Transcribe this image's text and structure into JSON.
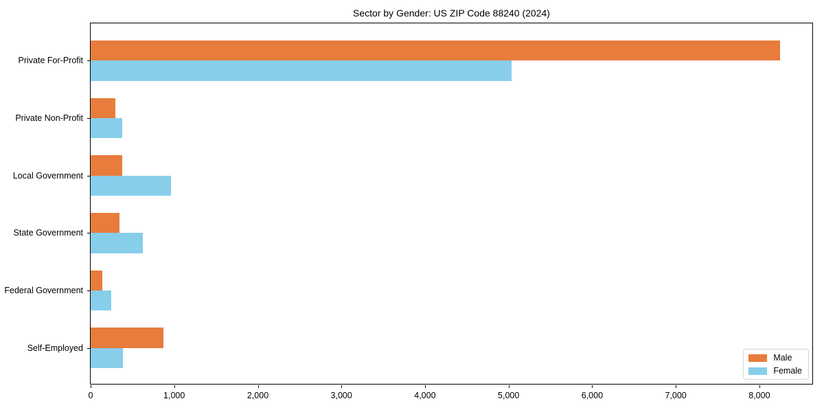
{
  "title": "Sector by Gender: US ZIP Code 88240 (2024)",
  "chart_data": {
    "type": "bar",
    "orientation": "horizontal",
    "title": "Sector by Gender: US ZIP Code 88240 (2024)",
    "categories": [
      "Private For-Profit",
      "Private Non-Profit",
      "Local Government",
      "State Government",
      "Federal Government",
      "Self-Employed"
    ],
    "series": [
      {
        "name": "Male",
        "color": "#E87C3C",
        "values": [
          8250,
          295,
          380,
          345,
          140,
          870
        ]
      },
      {
        "name": "Female",
        "color": "#87CEEB",
        "values": [
          5035,
          380,
          960,
          620,
          245,
          385
        ]
      }
    ],
    "xlabel": "",
    "ylabel": "",
    "xlim": [
      0,
      8650
    ],
    "xticks": [
      0,
      1000,
      2000,
      3000,
      4000,
      5000,
      6000,
      7000,
      8000
    ],
    "xtick_labels": [
      "0",
      "1,000",
      "2,000",
      "3,000",
      "4,000",
      "5,000",
      "6,000",
      "7,000",
      "8,000"
    ],
    "grid": false,
    "legend_position": "lower right"
  },
  "legend": {
    "items": [
      {
        "label": "Male",
        "color": "#E87C3C"
      },
      {
        "label": "Female",
        "color": "#87CEEB"
      }
    ]
  }
}
